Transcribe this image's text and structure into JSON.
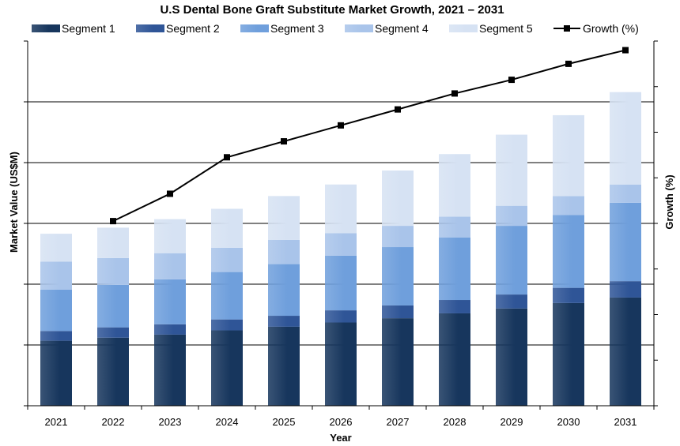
{
  "chart_data": {
    "type": "bar",
    "stacked": true,
    "title": "U.S Dental Bone Graft Substitute Market Growth, 2021 – 2031",
    "xlabel": "Year",
    "ylabel": "Market Value (US$M)",
    "y2label": "Growth (%)",
    "categories": [
      "2021",
      "2022",
      "2023",
      "2024",
      "2025",
      "2026",
      "2027",
      "2028",
      "2029",
      "2030",
      "2031"
    ],
    "ylim": [
      0,
      600
    ],
    "y2lim": [
      0,
      16
    ],
    "grid": true,
    "legend_position": "top",
    "series": [
      {
        "name": "Segment 1",
        "color": "#17365d",
        "values": [
          107,
          112,
          117,
          124,
          130,
          137,
          144,
          152,
          160,
          169,
          178
        ]
      },
      {
        "name": "Segment 2",
        "color": "#2f5597",
        "values": [
          16,
          17,
          17,
          18,
          18,
          20,
          21,
          22,
          23,
          25,
          27
        ]
      },
      {
        "name": "Segment 3",
        "color": "#6f9fdc",
        "values": [
          68,
          70,
          74,
          78,
          85,
          90,
          96,
          103,
          113,
          120,
          129
        ]
      },
      {
        "name": "Segment 4",
        "color": "#a9c4ea",
        "values": [
          46,
          44,
          43,
          40,
          40,
          37,
          35,
          34,
          33,
          31,
          30
        ]
      },
      {
        "name": "Segment 5",
        "color": "#d6e2f3",
        "values": [
          46,
          50,
          56,
          64,
          72,
          80,
          91,
          103,
          117,
          133,
          152
        ]
      }
    ],
    "line_series": {
      "name": "Growth (%)",
      "color": "#000000",
      "axis": "secondary",
      "x": [
        "2022",
        "2023",
        "2024",
        "2025",
        "2026",
        "2027",
        "2028",
        "2029",
        "2030",
        "2031"
      ],
      "values": [
        8.1,
        9.3,
        10.9,
        11.6,
        12.3,
        13.0,
        13.7,
        14.3,
        15.0,
        15.6
      ]
    }
  }
}
